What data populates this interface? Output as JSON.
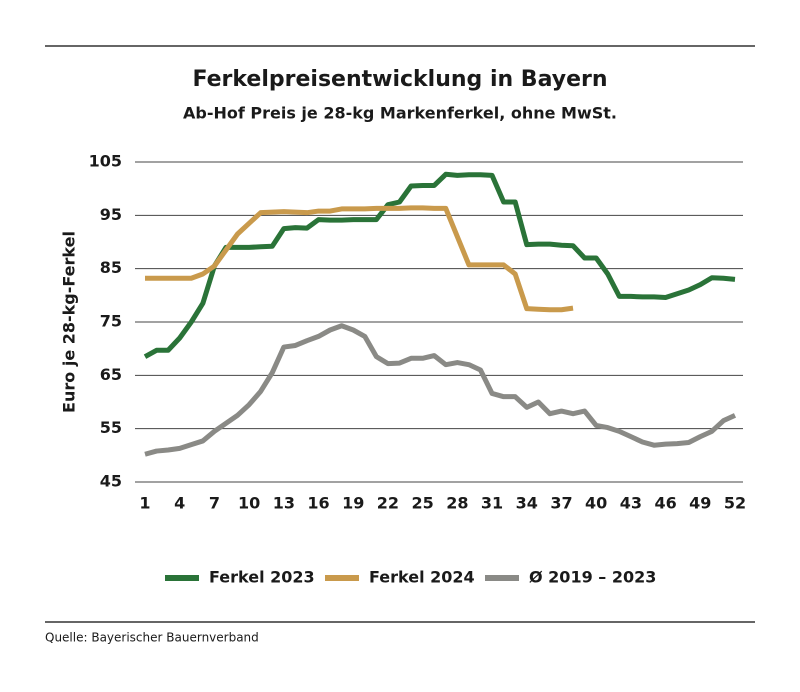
{
  "chart_data": {
    "type": "line",
    "title": "Ferkelpreisentwicklung in Bayern",
    "subtitle": "Ab-Hof Preis je 28-kg Markenferkel, ohne MwSt.",
    "y_label": "Euro je 28-kg-Ferkel",
    "x": [
      1,
      2,
      3,
      4,
      5,
      6,
      7,
      8,
      9,
      10,
      11,
      12,
      13,
      14,
      15,
      16,
      17,
      18,
      19,
      20,
      21,
      22,
      23,
      24,
      25,
      26,
      27,
      28,
      29,
      30,
      31,
      32,
      33,
      34,
      35,
      36,
      37,
      38,
      39,
      40,
      41,
      42,
      43,
      44,
      45,
      46,
      47,
      48,
      49,
      50,
      51,
      52
    ],
    "xlim": [
      1,
      52
    ],
    "xticks": [
      1,
      4,
      7,
      10,
      13,
      16,
      19,
      22,
      25,
      28,
      31,
      34,
      37,
      40,
      43,
      46,
      49,
      52
    ],
    "ylim": [
      45,
      105
    ],
    "yticks": [
      45,
      55,
      65,
      75,
      85,
      95,
      105
    ],
    "grid": true,
    "legend": "bottom",
    "series": [
      {
        "name": "Ferkel 2023",
        "color": "#2a7338",
        "values": [
          68.5,
          69.7,
          69.7,
          72,
          75,
          78.5,
          85.5,
          89,
          89,
          89,
          89.1,
          89.2,
          92.5,
          92.7,
          92.6,
          94.2,
          94.1,
          94.1,
          94.2,
          94.2,
          94.2,
          97,
          97.5,
          100.5,
          100.6,
          100.6,
          102.7,
          102.5,
          102.6,
          102.6,
          102.5,
          97.5,
          97.5,
          89.5,
          89.6,
          89.6,
          89.4,
          89.3,
          87,
          87,
          84,
          79.8,
          79.8,
          79.7,
          79.7,
          79.6,
          80.3,
          81,
          82,
          83.3,
          83.2,
          83
        ]
      },
      {
        "name": "Ferkel 2024",
        "color": "#c99a4c",
        "values": [
          83.2,
          83.2,
          83.2,
          83.2,
          83.2,
          84,
          85.5,
          88.5,
          91.5,
          93.5,
          95.5,
          95.6,
          95.7,
          95.6,
          95.5,
          95.8,
          95.8,
          96.2,
          96.2,
          96.2,
          96.3,
          96.3,
          96.3,
          96.4,
          96.4,
          96.3,
          96.3,
          91,
          85.7,
          85.7,
          85.7,
          85.7,
          84,
          77.5,
          77.4,
          77.3,
          77.3,
          77.6,
          null,
          null,
          null,
          null,
          null,
          null,
          null,
          null,
          null,
          null,
          null,
          null,
          null,
          null
        ]
      },
      {
        "name": "Ø 2019 – 2023",
        "color": "#8a8a86",
        "values": [
          50.2,
          50.8,
          51,
          51.3,
          52,
          52.7,
          54.5,
          56,
          57.5,
          59.5,
          62,
          65.5,
          70.3,
          70.6,
          71.5,
          72.3,
          73.5,
          74.3,
          73.5,
          72.3,
          68.5,
          67.2,
          67.3,
          68.2,
          68.2,
          68.7,
          67,
          67.4,
          67,
          66,
          61.6,
          61,
          61,
          59,
          60,
          57.8,
          58.3,
          57.8,
          58.3,
          55.6,
          55.2,
          54.5,
          53.5,
          52.5,
          51.9,
          52.1,
          52.2,
          52.4,
          53.5,
          54.5,
          56.5,
          57.5
        ]
      }
    ]
  },
  "source": "Quelle: Bayerischer Bauernverband"
}
